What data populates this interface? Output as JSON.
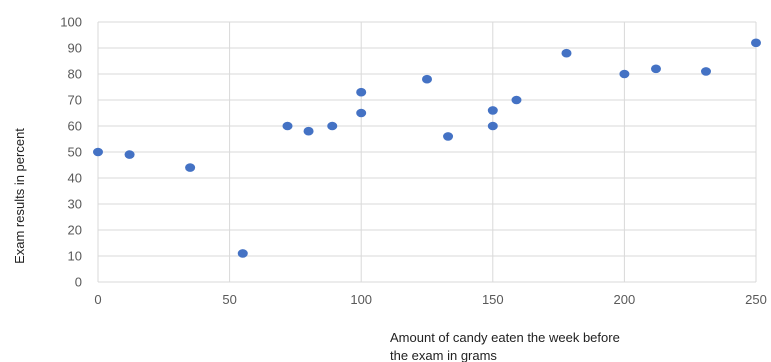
{
  "chart_data": {
    "type": "scatter",
    "title": "",
    "xlabel": [
      "Amount of candy eaten the week before",
      "the exam in grams"
    ],
    "ylabel": "Exam results in percent",
    "xlim": [
      0,
      250
    ],
    "ylim": [
      0,
      100
    ],
    "xticks": [
      0,
      50,
      100,
      150,
      200,
      250
    ],
    "yticks": [
      0,
      10,
      20,
      30,
      40,
      50,
      60,
      70,
      80,
      90,
      100
    ],
    "grid": {
      "x": true,
      "y": true
    },
    "legend": "none",
    "colors": {
      "points": "#4472c4",
      "grid": "#d9d9d9",
      "ticks": "#595959"
    },
    "series": [
      {
        "x": [
          0,
          12,
          35,
          55,
          72,
          80,
          89,
          100,
          100,
          125,
          133,
          150,
          150,
          159,
          178,
          200,
          212,
          231,
          250
        ],
        "y": [
          50,
          49,
          44,
          11,
          60,
          58,
          60,
          73,
          65,
          78,
          56,
          66,
          60,
          70,
          88,
          80,
          82,
          81,
          92
        ]
      }
    ]
  }
}
